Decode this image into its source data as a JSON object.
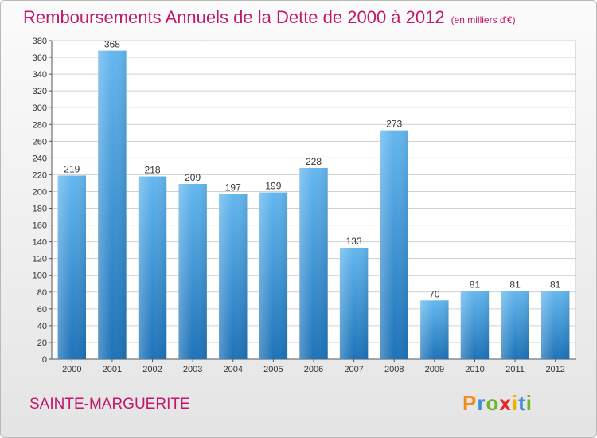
{
  "title": "Remboursements Annuels de la Dette de 2000 à 2012",
  "subtitle": "(en milliers d'€)",
  "commune": "SAINTE-MARGUERITE",
  "brand": {
    "letters": [
      "P",
      "r",
      "o",
      "x",
      "i",
      "t",
      "i"
    ],
    "colors": [
      "#f08a1c",
      "#3d8fd6",
      "#6fb52c",
      "#e02a2a",
      "#f0b400",
      "#3d8fd6",
      "#6fb52c"
    ]
  },
  "colors": {
    "title": "#c2186b",
    "bar_top": "#64b7ef",
    "bar_bottom": "#1e73b8",
    "grid": "#d0d0d0",
    "axis": "#555555"
  },
  "chart_data": {
    "type": "bar",
    "categories": [
      "2000",
      "2001",
      "2002",
      "2003",
      "2004",
      "2005",
      "2006",
      "2007",
      "2008",
      "2009",
      "2010",
      "2011",
      "2012"
    ],
    "values": [
      219,
      368,
      218,
      209,
      197,
      199,
      228,
      133,
      273,
      70,
      81,
      81,
      81
    ],
    "ylim": [
      0,
      380
    ],
    "ytick_step": 20,
    "grid": true,
    "data_labels": true
  }
}
